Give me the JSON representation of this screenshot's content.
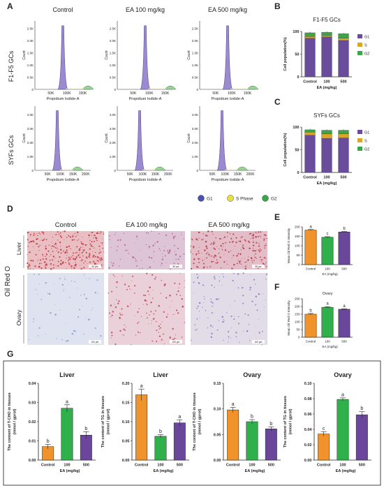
{
  "panels": {
    "A": "A",
    "B": "B",
    "C": "C",
    "D": "D",
    "E": "E",
    "F": "F",
    "G": "G"
  },
  "flow": {
    "col_titles": [
      "Control",
      "EA 100 mg/kg",
      "EA 500 mg/kg"
    ],
    "row_titles": [
      "F1-F5 GCs",
      "SYFs GCs"
    ],
    "ylabel": "Count",
    "xlabel": "Propidium Iodide-A",
    "top_yticks": [
      "0",
      "0.5K",
      "1.0K",
      "1.5K",
      "2.0K",
      "2.5K"
    ],
    "top_xticks": [
      "50K",
      "100K",
      "150K"
    ],
    "bottom_yticks": [
      "0",
      "1.0K",
      "2.0K",
      "3.0K",
      "4.0K"
    ],
    "bottom_xticks": [
      "50K",
      "100K",
      "150K",
      "200K"
    ],
    "legend": [
      {
        "label": "G1",
        "color": "#4a4fb4"
      },
      {
        "label": "S Phase",
        "color": "#e6e040"
      },
      {
        "label": "G2",
        "color": "#3aa64a"
      }
    ]
  },
  "staining": {
    "stain_label": "Oil Red O",
    "col_titles": [
      "Control",
      "EA 100 mg/kg",
      "EA 500 mg/kg"
    ],
    "tissues": [
      "Liver",
      "Ovary"
    ],
    "scale_bar": [
      "50 μm",
      "100 μm"
    ]
  },
  "colors": {
    "control": "#f0932b",
    "ea100": "#2fb04a",
    "ea500": "#6b479c",
    "g1": "#6a4c9c",
    "s": "#d9a628",
    "g2": "#3fa447"
  },
  "chart_data": [
    {
      "id": "B",
      "type": "bar",
      "title": "F1-F5 GCs",
      "stacked": true,
      "categories": [
        "Control",
        "100",
        "500"
      ],
      "xlabel": "EA (mg/kg)",
      "ylabel": "Cell population(%)",
      "ylim": [
        0,
        100
      ],
      "yticks": [
        0,
        50,
        100
      ],
      "series": [
        {
          "name": "G1",
          "values": [
            85,
            88,
            80
          ]
        },
        {
          "name": "S",
          "values": [
            4,
            3,
            5
          ]
        },
        {
          "name": "G2",
          "values": [
            8,
            7,
            10
          ]
        }
      ]
    },
    {
      "id": "C",
      "type": "bar",
      "title": "SYFs GCs",
      "stacked": true,
      "categories": [
        "Control",
        "100",
        "500"
      ],
      "xlabel": "EA (mg/kg)",
      "ylabel": "Cell population(%)",
      "ylim": [
        0,
        100
      ],
      "yticks": [
        0,
        50,
        100
      ],
      "series": [
        {
          "name": "G1",
          "values": [
            82,
            75,
            76
          ]
        },
        {
          "name": "S",
          "values": [
            7,
            10,
            9
          ]
        },
        {
          "name": "G2",
          "values": [
            5,
            8,
            8
          ]
        }
      ]
    },
    {
      "id": "E",
      "type": "bar",
      "title": "",
      "categories": [
        "Control",
        "100",
        "500"
      ],
      "xlabel": "EA (mg/kg)",
      "ylabel": "Mean Oil Red O Intensity",
      "ylim": [
        0,
        200
      ],
      "yticks": [
        0,
        50,
        100,
        150,
        200
      ],
      "values": [
        183,
        145,
        173
      ],
      "errors": [
        3,
        3,
        3
      ],
      "letters": [
        "a",
        "c",
        "b"
      ]
    },
    {
      "id": "F",
      "type": "bar",
      "title": "Ovary",
      "categories": [
        "Control",
        "100",
        "500"
      ],
      "xlabel": "EA (mg/kg)",
      "ylabel": "Mean Oil Red O Intensity",
      "ylim": [
        0,
        250
      ],
      "yticks": [
        0,
        50,
        100,
        150,
        200,
        250
      ],
      "values": [
        150,
        195,
        182
      ],
      "errors": [
        5,
        4,
        3
      ],
      "letters": [
        "b",
        "a",
        "a"
      ]
    },
    {
      "id": "G1",
      "type": "bar",
      "title": "Liver",
      "categories": [
        "Control",
        "100",
        "500"
      ],
      "xlabel": "EA (mg/kg)",
      "ylabel": "The content of T-CHO in tissues (mmol / gprot)",
      "ylim": [
        0,
        0.04
      ],
      "yticks": [
        "0.00",
        "0.01",
        "0.02",
        "0.03",
        "0.04"
      ],
      "values": [
        0.007,
        0.027,
        0.013
      ],
      "errors": [
        0.0012,
        0.0018,
        0.0018
      ],
      "letters": [
        "b",
        "a",
        "b"
      ]
    },
    {
      "id": "G2",
      "type": "bar",
      "title": "Liver",
      "categories": [
        "Control",
        "100",
        "500"
      ],
      "xlabel": "EA (mg/kg)",
      "ylabel": "The content of TG in tissues (mmol / gprot)",
      "ylim": [
        0,
        0.2
      ],
      "yticks": [
        "0.00",
        "0.05",
        "0.10",
        "0.15",
        "0.20"
      ],
      "values": [
        0.17,
        0.062,
        0.097
      ],
      "errors": [
        0.015,
        0.004,
        0.008
      ],
      "letters": [
        "a",
        "b",
        "a"
      ]
    },
    {
      "id": "G3",
      "type": "bar",
      "title": "Ovary",
      "categories": [
        "Control",
        "100",
        "500"
      ],
      "xlabel": "EA (mg/kg)",
      "ylabel": "The content of T-CHO in tissues (mmol / gprot)",
      "ylim": [
        0,
        0.15
      ],
      "yticks": [
        "0.00",
        "0.05",
        "0.10",
        "0.15"
      ],
      "values": [
        0.098,
        0.075,
        0.061
      ],
      "errors": [
        0.005,
        0.004,
        0.004
      ],
      "letters": [
        "a",
        "b",
        "b"
      ]
    },
    {
      "id": "G4",
      "type": "bar",
      "title": "Ovary",
      "categories": [
        "Control",
        "100",
        "500"
      ],
      "xlabel": "EA (mg/kg)",
      "ylabel": "The content of TG in tissues (mmol / gprot)",
      "ylim": [
        0,
        0.1
      ],
      "yticks": [
        "0.00",
        "0.02",
        "0.04",
        "0.06",
        "0.08",
        "0.10"
      ],
      "values": [
        0.034,
        0.079,
        0.059
      ],
      "errors": [
        0.003,
        0.002,
        0.004
      ],
      "letters": [
        "c",
        "a",
        "b"
      ]
    }
  ]
}
